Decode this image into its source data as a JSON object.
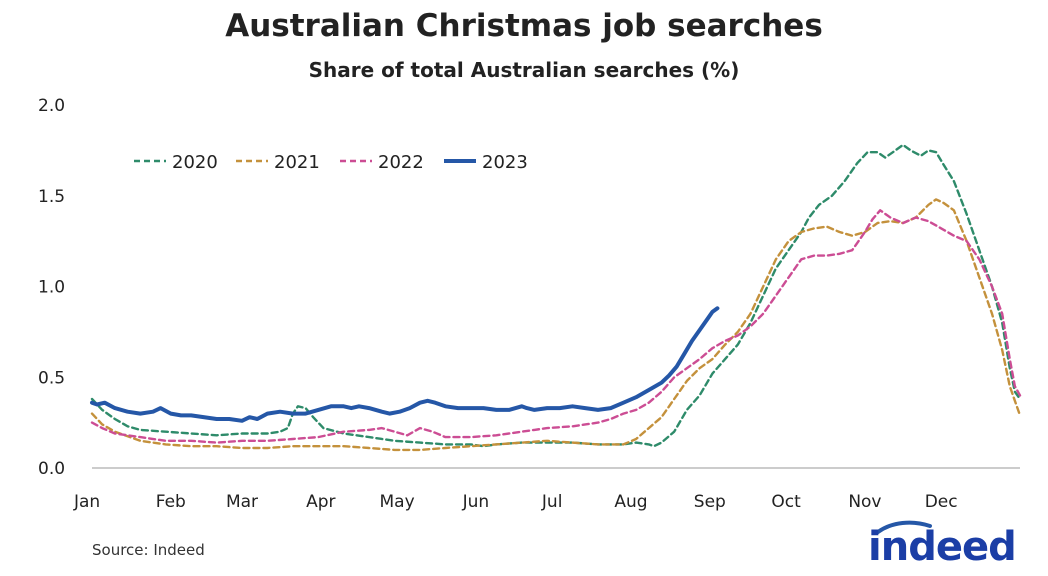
{
  "chart_data": {
    "type": "line",
    "title": "Australian Christmas job searches",
    "subtitle": "Share of total Australian searches (%)",
    "xlabel": "",
    "ylabel": "",
    "ylim": [
      0,
      2.0
    ],
    "xlim": [
      1,
      366
    ],
    "x_ticks": [
      {
        "label": "Jan",
        "day": 1
      },
      {
        "label": "Feb",
        "day": 32
      },
      {
        "label": "Mar",
        "day": 60
      },
      {
        "label": "Apr",
        "day": 91
      },
      {
        "label": "May",
        "day": 121
      },
      {
        "label": "Jun",
        "day": 152
      },
      {
        "label": "Jul",
        "day": 182
      },
      {
        "label": "Aug",
        "day": 213
      },
      {
        "label": "Sep",
        "day": 244
      },
      {
        "label": "Oct",
        "day": 274
      },
      {
        "label": "Nov",
        "day": 305
      },
      {
        "label": "Dec",
        "day": 335
      }
    ],
    "y_ticks": [
      {
        "label": "0.0",
        "value": 0.0
      },
      {
        "label": "0.5",
        "value": 0.5
      },
      {
        "label": "1.0",
        "value": 1.0
      },
      {
        "label": "1.5",
        "value": 1.5
      },
      {
        "label": "2.0",
        "value": 2.0
      }
    ],
    "legend_position": "top-left",
    "grid": false,
    "series": [
      {
        "name": "2020",
        "color": "#2e8b6a",
        "style": "dashed",
        "points": [
          [
            1,
            0.38
          ],
          [
            5,
            0.32
          ],
          [
            10,
            0.27
          ],
          [
            15,
            0.23
          ],
          [
            20,
            0.21
          ],
          [
            30,
            0.2
          ],
          [
            40,
            0.19
          ],
          [
            50,
            0.18
          ],
          [
            60,
            0.19
          ],
          [
            70,
            0.19
          ],
          [
            75,
            0.2
          ],
          [
            78,
            0.22
          ],
          [
            80,
            0.3
          ],
          [
            82,
            0.34
          ],
          [
            85,
            0.33
          ],
          [
            88,
            0.28
          ],
          [
            92,
            0.22
          ],
          [
            100,
            0.19
          ],
          [
            110,
            0.17
          ],
          [
            120,
            0.15
          ],
          [
            130,
            0.14
          ],
          [
            140,
            0.13
          ],
          [
            150,
            0.13
          ],
          [
            155,
            0.12
          ],
          [
            160,
            0.13
          ],
          [
            170,
            0.14
          ],
          [
            180,
            0.14
          ],
          [
            190,
            0.14
          ],
          [
            200,
            0.13
          ],
          [
            210,
            0.13
          ],
          [
            215,
            0.14
          ],
          [
            220,
            0.13
          ],
          [
            222,
            0.12
          ],
          [
            225,
            0.14
          ],
          [
            230,
            0.2
          ],
          [
            235,
            0.32
          ],
          [
            240,
            0.4
          ],
          [
            245,
            0.52
          ],
          [
            250,
            0.6
          ],
          [
            255,
            0.68
          ],
          [
            260,
            0.8
          ],
          [
            265,
            0.95
          ],
          [
            270,
            1.1
          ],
          [
            275,
            1.2
          ],
          [
            280,
            1.3
          ],
          [
            283,
            1.38
          ],
          [
            287,
            1.45
          ],
          [
            292,
            1.5
          ],
          [
            297,
            1.58
          ],
          [
            302,
            1.68
          ],
          [
            306,
            1.74
          ],
          [
            310,
            1.74
          ],
          [
            313,
            1.71
          ],
          [
            316,
            1.74
          ],
          [
            320,
            1.78
          ],
          [
            323,
            1.75
          ],
          [
            327,
            1.72
          ],
          [
            330,
            1.75
          ],
          [
            333,
            1.74
          ],
          [
            336,
            1.67
          ],
          [
            340,
            1.58
          ],
          [
            345,
            1.4
          ],
          [
            350,
            1.2
          ],
          [
            355,
            1.0
          ],
          [
            359,
            0.8
          ],
          [
            362,
            0.55
          ],
          [
            364,
            0.42
          ],
          [
            366,
            0.38
          ]
        ]
      },
      {
        "name": "2021",
        "color": "#c4913c",
        "style": "dashed",
        "points": [
          [
            1,
            0.3
          ],
          [
            5,
            0.24
          ],
          [
            10,
            0.2
          ],
          [
            20,
            0.15
          ],
          [
            30,
            0.13
          ],
          [
            40,
            0.12
          ],
          [
            50,
            0.12
          ],
          [
            60,
            0.11
          ],
          [
            70,
            0.11
          ],
          [
            80,
            0.12
          ],
          [
            90,
            0.12
          ],
          [
            100,
            0.12
          ],
          [
            110,
            0.11
          ],
          [
            120,
            0.1
          ],
          [
            130,
            0.1
          ],
          [
            140,
            0.11
          ],
          [
            150,
            0.12
          ],
          [
            160,
            0.13
          ],
          [
            170,
            0.14
          ],
          [
            180,
            0.15
          ],
          [
            190,
            0.14
          ],
          [
            200,
            0.13
          ],
          [
            210,
            0.13
          ],
          [
            215,
            0.16
          ],
          [
            220,
            0.22
          ],
          [
            225,
            0.28
          ],
          [
            230,
            0.38
          ],
          [
            235,
            0.48
          ],
          [
            240,
            0.55
          ],
          [
            245,
            0.6
          ],
          [
            250,
            0.68
          ],
          [
            255,
            0.75
          ],
          [
            260,
            0.85
          ],
          [
            265,
            1.0
          ],
          [
            270,
            1.15
          ],
          [
            275,
            1.25
          ],
          [
            280,
            1.3
          ],
          [
            285,
            1.32
          ],
          [
            290,
            1.33
          ],
          [
            295,
            1.3
          ],
          [
            300,
            1.28
          ],
          [
            305,
            1.3
          ],
          [
            310,
            1.35
          ],
          [
            315,
            1.36
          ],
          [
            320,
            1.35
          ],
          [
            325,
            1.38
          ],
          [
            330,
            1.45
          ],
          [
            333,
            1.48
          ],
          [
            336,
            1.46
          ],
          [
            340,
            1.42
          ],
          [
            345,
            1.25
          ],
          [
            350,
            1.05
          ],
          [
            355,
            0.85
          ],
          [
            359,
            0.65
          ],
          [
            362,
            0.45
          ],
          [
            366,
            0.29
          ]
        ]
      },
      {
        "name": "2022",
        "color": "#cc4d94",
        "style": "dashed",
        "points": [
          [
            1,
            0.25
          ],
          [
            5,
            0.22
          ],
          [
            10,
            0.19
          ],
          [
            20,
            0.17
          ],
          [
            30,
            0.15
          ],
          [
            40,
            0.15
          ],
          [
            50,
            0.14
          ],
          [
            60,
            0.15
          ],
          [
            70,
            0.15
          ],
          [
            80,
            0.16
          ],
          [
            90,
            0.17
          ],
          [
            100,
            0.2
          ],
          [
            110,
            0.21
          ],
          [
            115,
            0.22
          ],
          [
            120,
            0.2
          ],
          [
            125,
            0.18
          ],
          [
            130,
            0.22
          ],
          [
            135,
            0.2
          ],
          [
            140,
            0.17
          ],
          [
            150,
            0.17
          ],
          [
            160,
            0.18
          ],
          [
            170,
            0.2
          ],
          [
            175,
            0.21
          ],
          [
            180,
            0.22
          ],
          [
            190,
            0.23
          ],
          [
            200,
            0.25
          ],
          [
            205,
            0.27
          ],
          [
            210,
            0.3
          ],
          [
            215,
            0.32
          ],
          [
            220,
            0.36
          ],
          [
            225,
            0.42
          ],
          [
            230,
            0.5
          ],
          [
            235,
            0.55
          ],
          [
            240,
            0.6
          ],
          [
            245,
            0.66
          ],
          [
            250,
            0.7
          ],
          [
            255,
            0.73
          ],
          [
            260,
            0.78
          ],
          [
            265,
            0.85
          ],
          [
            270,
            0.95
          ],
          [
            275,
            1.05
          ],
          [
            280,
            1.15
          ],
          [
            285,
            1.17
          ],
          [
            290,
            1.17
          ],
          [
            295,
            1.18
          ],
          [
            300,
            1.2
          ],
          [
            305,
            1.3
          ],
          [
            308,
            1.37
          ],
          [
            311,
            1.42
          ],
          [
            315,
            1.38
          ],
          [
            320,
            1.35
          ],
          [
            325,
            1.38
          ],
          [
            330,
            1.36
          ],
          [
            335,
            1.32
          ],
          [
            340,
            1.28
          ],
          [
            345,
            1.25
          ],
          [
            350,
            1.15
          ],
          [
            355,
            1.0
          ],
          [
            359,
            0.85
          ],
          [
            362,
            0.6
          ],
          [
            364,
            0.45
          ],
          [
            366,
            0.4
          ]
        ]
      },
      {
        "name": "2023",
        "color": "#2557a7",
        "style": "solid",
        "points": [
          [
            1,
            0.36
          ],
          [
            3,
            0.35
          ],
          [
            6,
            0.36
          ],
          [
            10,
            0.33
          ],
          [
            15,
            0.31
          ],
          [
            20,
            0.3
          ],
          [
            25,
            0.31
          ],
          [
            28,
            0.33
          ],
          [
            32,
            0.3
          ],
          [
            36,
            0.29
          ],
          [
            40,
            0.29
          ],
          [
            50,
            0.27
          ],
          [
            55,
            0.27
          ],
          [
            60,
            0.26
          ],
          [
            63,
            0.28
          ],
          [
            66,
            0.27
          ],
          [
            70,
            0.3
          ],
          [
            75,
            0.31
          ],
          [
            80,
            0.3
          ],
          [
            85,
            0.3
          ],
          [
            90,
            0.32
          ],
          [
            95,
            0.34
          ],
          [
            100,
            0.34
          ],
          [
            103,
            0.33
          ],
          [
            106,
            0.34
          ],
          [
            110,
            0.33
          ],
          [
            115,
            0.31
          ],
          [
            118,
            0.3
          ],
          [
            122,
            0.31
          ],
          [
            126,
            0.33
          ],
          [
            130,
            0.36
          ],
          [
            133,
            0.37
          ],
          [
            136,
            0.36
          ],
          [
            140,
            0.34
          ],
          [
            145,
            0.33
          ],
          [
            150,
            0.33
          ],
          [
            155,
            0.33
          ],
          [
            160,
            0.32
          ],
          [
            165,
            0.32
          ],
          [
            170,
            0.34
          ],
          [
            172,
            0.33
          ],
          [
            175,
            0.32
          ],
          [
            180,
            0.33
          ],
          [
            185,
            0.33
          ],
          [
            190,
            0.34
          ],
          [
            195,
            0.33
          ],
          [
            200,
            0.32
          ],
          [
            205,
            0.33
          ],
          [
            210,
            0.36
          ],
          [
            215,
            0.39
          ],
          [
            220,
            0.43
          ],
          [
            225,
            0.47
          ],
          [
            228,
            0.51
          ],
          [
            231,
            0.56
          ],
          [
            234,
            0.63
          ],
          [
            237,
            0.7
          ],
          [
            240,
            0.76
          ],
          [
            243,
            0.82
          ],
          [
            245,
            0.86
          ],
          [
            247,
            0.88
          ]
        ]
      }
    ]
  },
  "footer": {
    "source": "Source: Indeed",
    "logo_text": "indeed",
    "logo_color": "#2557a7"
  }
}
